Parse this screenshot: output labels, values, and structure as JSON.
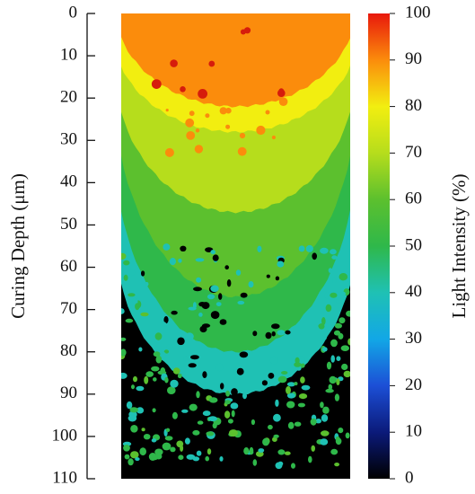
{
  "chart_data": {
    "type": "heatmap",
    "title": "",
    "ylabel": "Curing Depth (μm)",
    "colorbar_label": "Light Intensity (%)",
    "y_axis": {
      "range": [
        0,
        110
      ],
      "inverted": true,
      "ticks": [
        0,
        10,
        20,
        30,
        40,
        50,
        60,
        70,
        80,
        90,
        100,
        110
      ]
    },
    "colorbar": {
      "range": [
        0,
        100
      ],
      "ticks": [
        0,
        10,
        20,
        30,
        40,
        50,
        60,
        70,
        80,
        90,
        100
      ],
      "colormap": [
        {
          "value": 0,
          "color": "#000000"
        },
        {
          "value": 10,
          "color": "#0b1a7a"
        },
        {
          "value": 20,
          "color": "#1c4fd6"
        },
        {
          "value": 30,
          "color": "#12a7e6"
        },
        {
          "value": 40,
          "color": "#1fc1b4"
        },
        {
          "value": 50,
          "color": "#2fb84a"
        },
        {
          "value": 60,
          "color": "#5cc02e"
        },
        {
          "value": 70,
          "color": "#b6dd1c"
        },
        {
          "value": 80,
          "color": "#f2ee10"
        },
        {
          "value": 90,
          "color": "#fb8c0c"
        },
        {
          "value": 100,
          "color": "#e8180c"
        }
      ]
    },
    "contour_levels": [
      {
        "level": 90,
        "depth_center": 0,
        "depth_edge": 0,
        "center_max_depth": 22
      },
      {
        "level": 80,
        "depth_center": 0,
        "depth_edge": 7,
        "center_max_depth": 28
      },
      {
        "level": 70,
        "depth_center": 0,
        "depth_edge": 15,
        "center_max_depth": 47
      },
      {
        "level": 60,
        "depth_center": 0,
        "depth_edge": 22,
        "center_max_depth": 67
      },
      {
        "level": 50,
        "depth_center": 0,
        "depth_edge": 35,
        "center_max_depth": 80
      },
      {
        "level": 40,
        "depth_center": 0,
        "depth_edge": 55,
        "center_max_depth": 90
      }
    ],
    "grid": false
  }
}
